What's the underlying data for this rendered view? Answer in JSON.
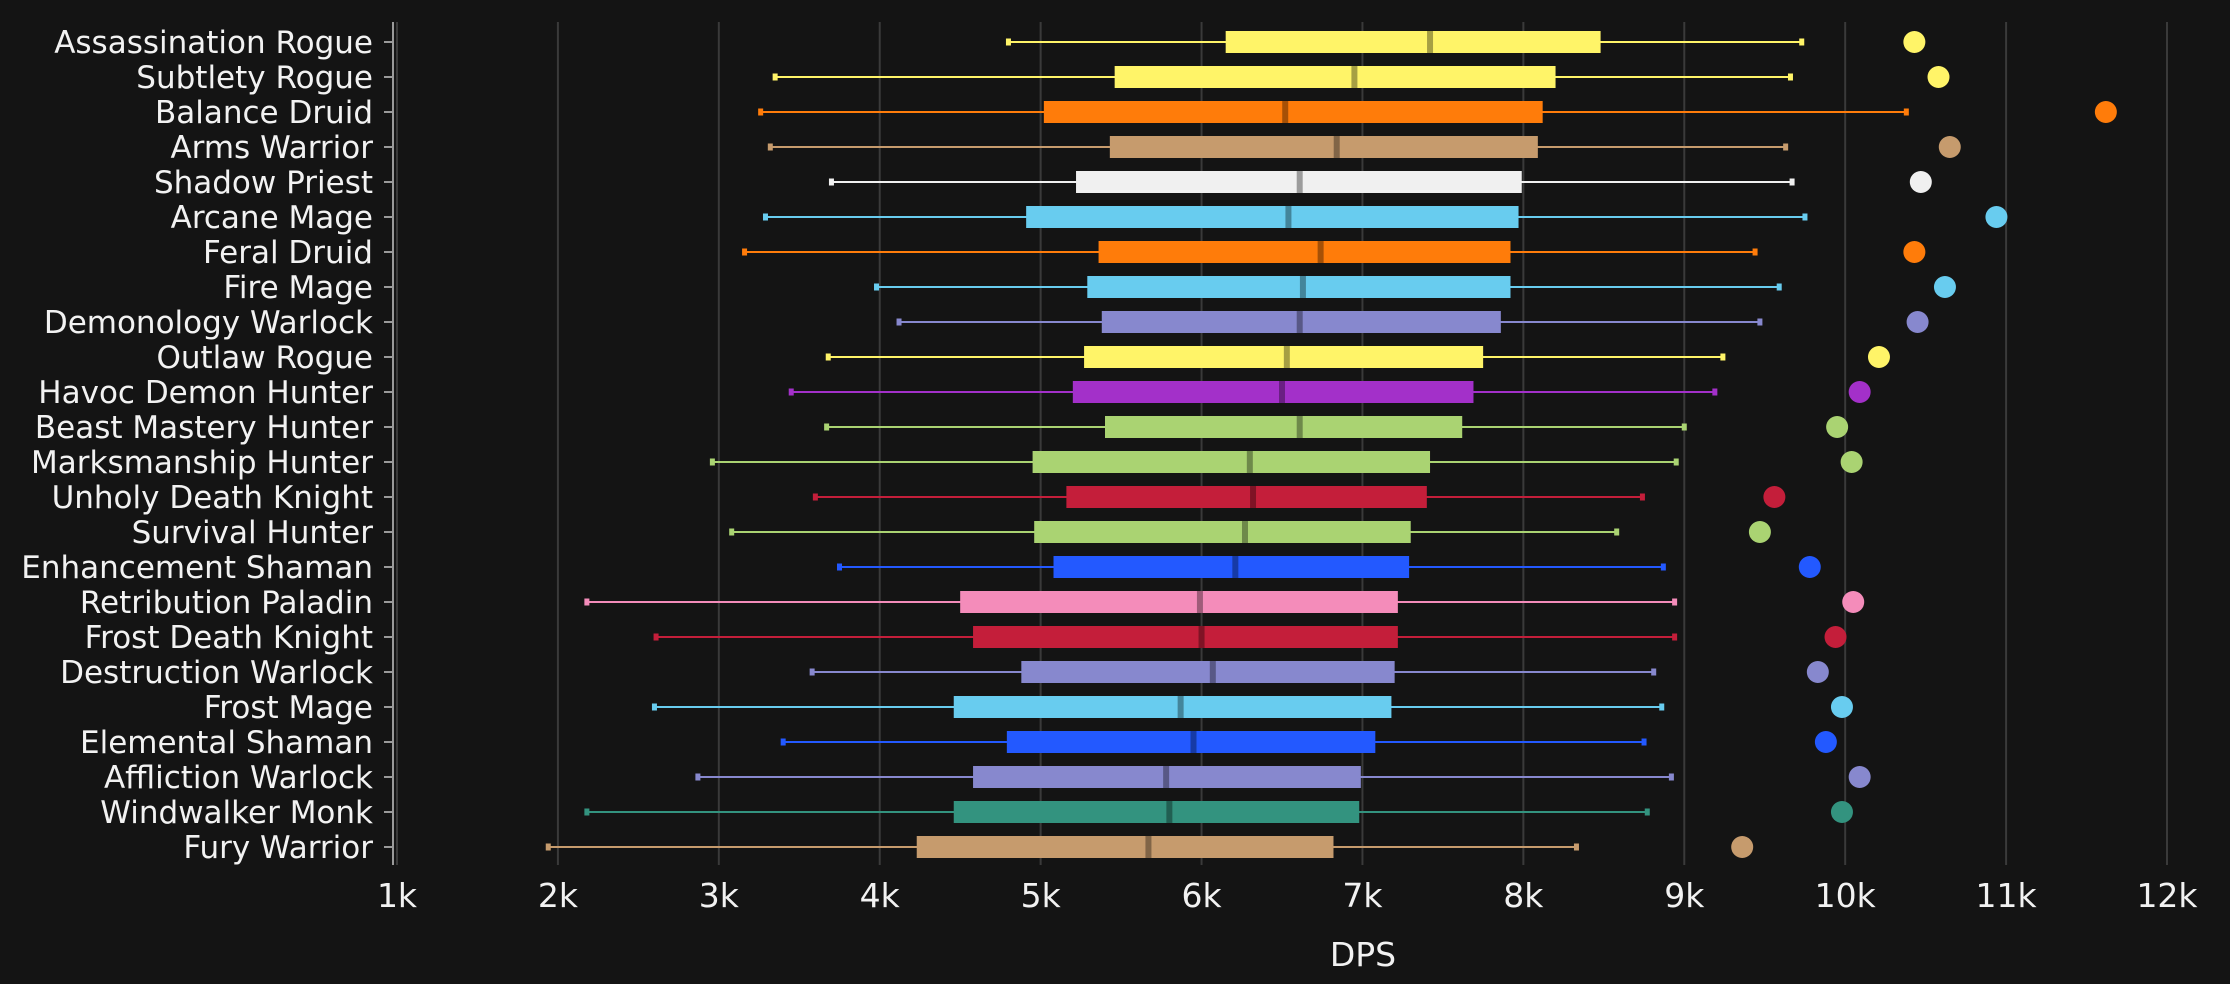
{
  "chart_data": {
    "type": "box",
    "title": "",
    "xlabel": "DPS",
    "ylabel": "",
    "xlim": [
      1000,
      12000
    ],
    "xticks": [
      1000,
      2000,
      3000,
      4000,
      5000,
      6000,
      7000,
      8000,
      9000,
      10000,
      11000,
      12000
    ],
    "xtick_labels": [
      "1k",
      "2k",
      "3k",
      "4k",
      "5k",
      "6k",
      "7k",
      "8k",
      "9k",
      "10k",
      "11k",
      "12k"
    ],
    "grid": "vertical",
    "legend": "none",
    "series": [
      {
        "name": "Assassination Rogue",
        "color": "#FFF468",
        "min": 4800,
        "q1": 6150,
        "median": 7420,
        "q3": 8480,
        "max": 9730,
        "max_point": 10430
      },
      {
        "name": "Subtlety Rogue",
        "color": "#FFF468",
        "min": 3350,
        "q1": 5460,
        "median": 6950,
        "q3": 8200,
        "max": 9660,
        "max_point": 10580
      },
      {
        "name": "Balance Druid",
        "color": "#FF7C0A",
        "min": 3260,
        "q1": 5020,
        "median": 6520,
        "q3": 8120,
        "max": 10380,
        "max_point": 11620
      },
      {
        "name": "Arms Warrior",
        "color": "#C69B6D",
        "min": 3320,
        "q1": 5430,
        "median": 6840,
        "q3": 8090,
        "max": 9630,
        "max_point": 10650
      },
      {
        "name": "Shadow Priest",
        "color": "#F0F0F0",
        "min": 3700,
        "q1": 5220,
        "median": 6610,
        "q3": 7990,
        "max": 9670,
        "max_point": 10470
      },
      {
        "name": "Arcane Mage",
        "color": "#68CCEF",
        "min": 3290,
        "q1": 4910,
        "median": 6540,
        "q3": 7970,
        "max": 9750,
        "max_point": 10940
      },
      {
        "name": "Feral Druid",
        "color": "#FF7C0A",
        "min": 3160,
        "q1": 5360,
        "median": 6740,
        "q3": 7920,
        "max": 9440,
        "max_point": 10430
      },
      {
        "name": "Fire Mage",
        "color": "#68CCEF",
        "min": 3980,
        "q1": 5290,
        "median": 6630,
        "q3": 7920,
        "max": 9590,
        "max_point": 10620
      },
      {
        "name": "Demonology Warlock",
        "color": "#8788CE",
        "min": 4120,
        "q1": 5380,
        "median": 6610,
        "q3": 7860,
        "max": 9470,
        "max_point": 10450
      },
      {
        "name": "Outlaw Rogue",
        "color": "#FFF468",
        "min": 3680,
        "q1": 5270,
        "median": 6530,
        "q3": 7750,
        "max": 9240,
        "max_point": 10210
      },
      {
        "name": "Havoc Demon Hunter",
        "color": "#A330C9",
        "min": 3450,
        "q1": 5200,
        "median": 6500,
        "q3": 7690,
        "max": 9190,
        "max_point": 10090
      },
      {
        "name": "Beast Mastery Hunter",
        "color": "#AAD372",
        "min": 3670,
        "q1": 5400,
        "median": 6610,
        "q3": 7620,
        "max": 9000,
        "max_point": 9950
      },
      {
        "name": "Marksmanship Hunter",
        "color": "#AAD372",
        "min": 2960,
        "q1": 4950,
        "median": 6300,
        "q3": 7420,
        "max": 8950,
        "max_point": 10040
      },
      {
        "name": "Unholy Death Knight",
        "color": "#C41E3A",
        "min": 3600,
        "q1": 5160,
        "median": 6320,
        "q3": 7400,
        "max": 8740,
        "max_point": 9560
      },
      {
        "name": "Survival Hunter",
        "color": "#AAD372",
        "min": 3080,
        "q1": 4960,
        "median": 6270,
        "q3": 7300,
        "max": 8580,
        "max_point": 9470
      },
      {
        "name": "Enhancement Shaman",
        "color": "#2359FF",
        "min": 3750,
        "q1": 5080,
        "median": 6210,
        "q3": 7290,
        "max": 8870,
        "max_point": 9780
      },
      {
        "name": "Retribution Paladin",
        "color": "#F48CBA",
        "min": 2180,
        "q1": 4500,
        "median": 5990,
        "q3": 7220,
        "max": 8940,
        "max_point": 10050
      },
      {
        "name": "Frost Death Knight",
        "color": "#C41E3A",
        "min": 2610,
        "q1": 4580,
        "median": 6000,
        "q3": 7220,
        "max": 8940,
        "max_point": 9940
      },
      {
        "name": "Destruction Warlock",
        "color": "#8788CE",
        "min": 3580,
        "q1": 4880,
        "median": 6070,
        "q3": 7200,
        "max": 8810,
        "max_point": 9830
      },
      {
        "name": "Frost Mage",
        "color": "#68CCEF",
        "min": 2600,
        "q1": 4460,
        "median": 5870,
        "q3": 7180,
        "max": 8860,
        "max_point": 9980
      },
      {
        "name": "Elemental Shaman",
        "color": "#2359FF",
        "min": 3400,
        "q1": 4790,
        "median": 5950,
        "q3": 7080,
        "max": 8750,
        "max_point": 9880
      },
      {
        "name": "Affliction Warlock",
        "color": "#8788CE",
        "min": 2870,
        "q1": 4580,
        "median": 5780,
        "q3": 6990,
        "max": 8920,
        "max_point": 10090
      },
      {
        "name": "Windwalker Monk",
        "color": "#33937F",
        "min": 2180,
        "q1": 4460,
        "median": 5800,
        "q3": 6980,
        "max": 8770,
        "max_point": 9980
      },
      {
        "name": "Fury Warrior",
        "color": "#C69B6D",
        "min": 1940,
        "q1": 4230,
        "median": 5670,
        "q3": 6820,
        "max": 8330,
        "max_point": 9360
      }
    ]
  }
}
